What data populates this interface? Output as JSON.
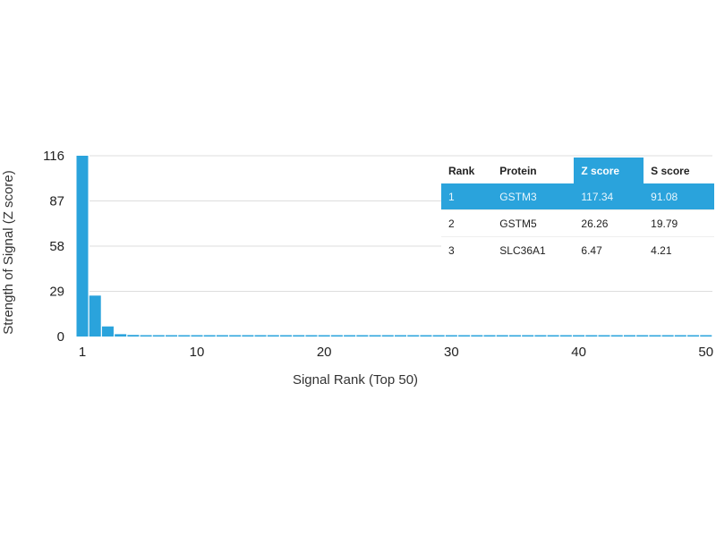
{
  "chart_data": {
    "type": "bar",
    "xlabel": "Signal Rank (Top 50)",
    "ylabel": "Strength of Signal (Z score)",
    "ylim": [
      0,
      116
    ],
    "yticks": [
      "0",
      "29",
      "58",
      "87",
      "116"
    ],
    "xticks": [
      "1",
      "10",
      "20",
      "30",
      "40",
      "50"
    ],
    "grid": true,
    "bar_color": "#2aa3dc",
    "x": [
      1,
      2,
      3,
      4,
      5,
      6,
      7,
      8,
      9,
      10,
      11,
      12,
      13,
      14,
      15,
      16,
      17,
      18,
      19,
      20,
      21,
      22,
      23,
      24,
      25,
      26,
      27,
      28,
      29,
      30,
      31,
      32,
      33,
      34,
      35,
      36,
      37,
      38,
      39,
      40,
      41,
      42,
      43,
      44,
      45,
      46,
      47,
      48,
      49,
      50
    ],
    "values": [
      117.34,
      26.26,
      6.47,
      1.5,
      1.0,
      0.4,
      0.3,
      0.3,
      0.3,
      0.3,
      0.3,
      0.3,
      0.3,
      0.3,
      0.3,
      0.3,
      0.3,
      0.3,
      0.3,
      0.3,
      0.3,
      0.3,
      0.3,
      0.3,
      0.3,
      0.3,
      0.3,
      0.3,
      0.3,
      0.3,
      0.3,
      0.3,
      0.3,
      0.3,
      0.3,
      0.3,
      0.3,
      0.3,
      0.3,
      0.3,
      0.3,
      0.3,
      0.3,
      0.3,
      0.3,
      0.3,
      0.3,
      0.3,
      0.3,
      0.3
    ]
  },
  "table": {
    "headers": [
      "Rank",
      "Protein",
      "Z score",
      "S score"
    ],
    "rows": [
      [
        "1",
        "GSTM3",
        "117.34",
        "91.08"
      ],
      [
        "2",
        "GSTM5",
        "26.26",
        "19.79"
      ],
      [
        "3",
        "SLC36A1",
        "6.47",
        "4.21"
      ]
    ],
    "highlight_color": "#2aa3dc"
  }
}
